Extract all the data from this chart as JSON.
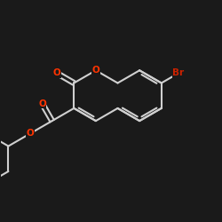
{
  "bg": "#1a1a1a",
  "bond_color": "#d0d0d0",
  "O_color": "#ff3300",
  "Br_color": "#cc2200",
  "lw": 1.5,
  "dpi": 100,
  "figsize": [
    2.5,
    2.5
  ],
  "xlim": [
    -0.5,
    9.5
  ],
  "ylim": [
    -0.5,
    9.5
  ]
}
